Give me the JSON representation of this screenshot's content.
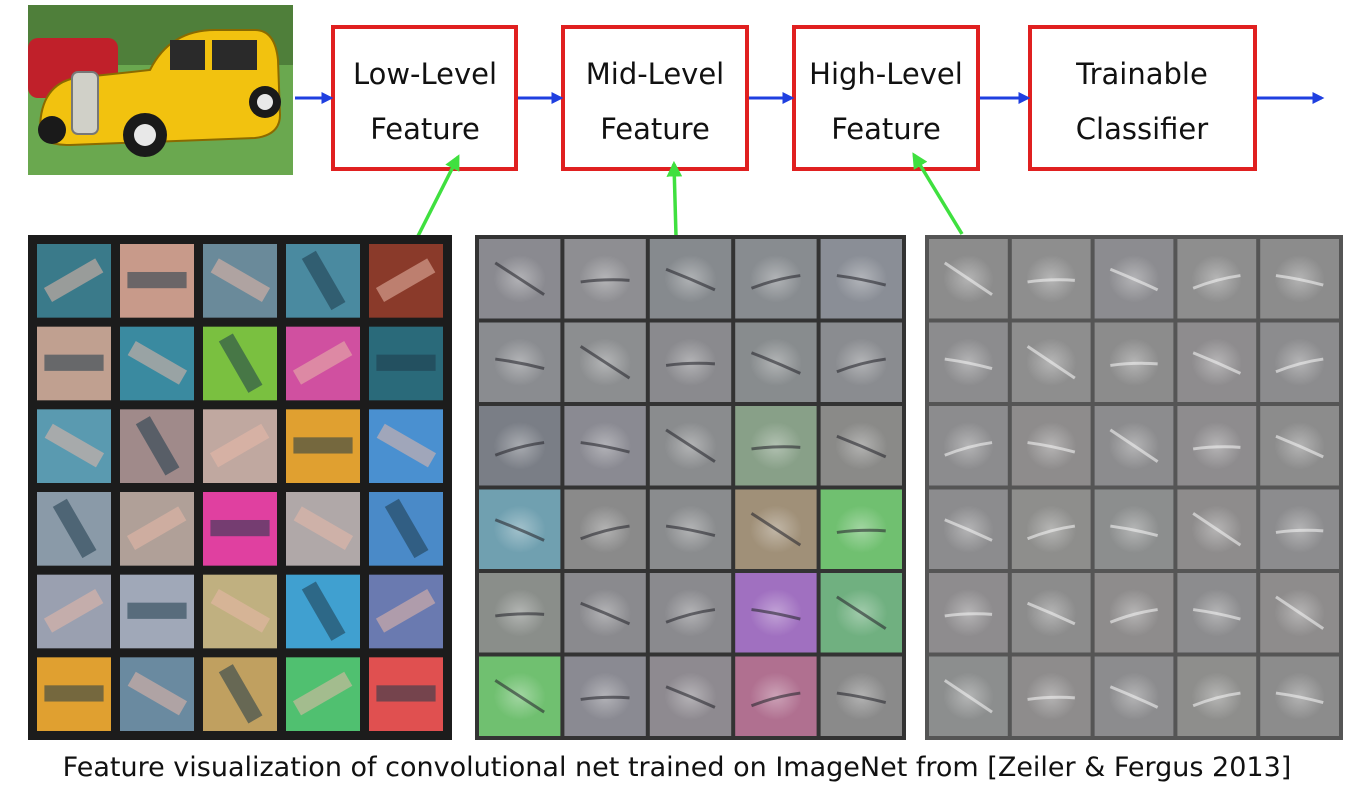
{
  "pipeline": {
    "input_image": {
      "icon": "yellow-hot-rod-car-photo"
    },
    "stages": [
      {
        "line1": "Low-Level",
        "line2": "Feature"
      },
      {
        "line1": "Mid-Level",
        "line2": "Feature"
      },
      {
        "line1": "High-Level",
        "line2": "Feature"
      },
      {
        "line1": "Trainable",
        "line2": "Classifier"
      }
    ],
    "colors": {
      "box_border": "#e02020",
      "flow_arrow": "#1f3fe0",
      "link_arrow": "#3fe03f"
    }
  },
  "feature_grids": [
    {
      "name": "low-level-filters",
      "rows": 6,
      "cols": 5,
      "background": "#1c1c1c",
      "cells": [
        "#3a7a8a",
        "#c89a8a",
        "#6a8a9a",
        "#4a8aa0",
        "#8a3a2a",
        "#c0a090",
        "#3a8aa0",
        "#7ac040",
        "#d050a0",
        "#2a6a7a",
        "#5a9ab0",
        "#a08a8a",
        "#c0a8a0",
        "#e0a030",
        "#4a90d0",
        "#8a9aa8",
        "#b0a098",
        "#e040a0",
        "#b0a8a8",
        "#4a8ac8",
        "#9aa0b0",
        "#a0a8b8",
        "#c0b080",
        "#40a0d0",
        "#6a7ab0",
        "#e0a030",
        "#6a8aa0",
        "#c0a060",
        "#50c070",
        "#e05050"
      ]
    },
    {
      "name": "mid-level-filters",
      "rows": 6,
      "cols": 5,
      "background": "#333333",
      "cells": [
        "#8a8a90",
        "#8e8e92",
        "#868a8e",
        "#888c90",
        "#8a8e96",
        "#8a8c90",
        "#8c8e90",
        "#8a8a8e",
        "#888c8e",
        "#8a8c90",
        "#7a7e86",
        "#8a8a92",
        "#8a8c8e",
        "#88a088",
        "#8a8a88",
        "#70a0b0",
        "#8a8a8a",
        "#8a8c8e",
        "#a09078",
        "#70c070",
        "#8a8e8a",
        "#8a8a8e",
        "#8a8a8e",
        "#a070c0",
        "#70b080",
        "#70c070",
        "#8a8a92",
        "#8e8a90",
        "#b07090",
        "#8a8a8a"
      ]
    },
    {
      "name": "high-level-filters",
      "rows": 6,
      "cols": 5,
      "background": "#555555",
      "cells": [
        "#8c8c8c",
        "#8e8e8e",
        "#8c8c90",
        "#8e8e8e",
        "#8c8c8c",
        "#8c8c8e",
        "#8e8e8e",
        "#8c8c8c",
        "#8e8c8e",
        "#8c8c8e",
        "#8c8c8e",
        "#8e8c8c",
        "#8c8c8e",
        "#8e8c8e",
        "#8c8c8c",
        "#8c8c8e",
        "#8e8e8c",
        "#8c8e8e",
        "#8e8c8c",
        "#8c8c8e",
        "#8e8c8e",
        "#8c8c8c",
        "#8e8c8c",
        "#8c8c8e",
        "#8e8c8c",
        "#8c8e8e",
        "#8e8c8c",
        "#8c8c8e",
        "#8e8e8c",
        "#8c8c8c"
      ]
    }
  ],
  "caption": "Feature visualization of convolutional net trained on ImageNet from [Zeiler & Fergus 2013]"
}
